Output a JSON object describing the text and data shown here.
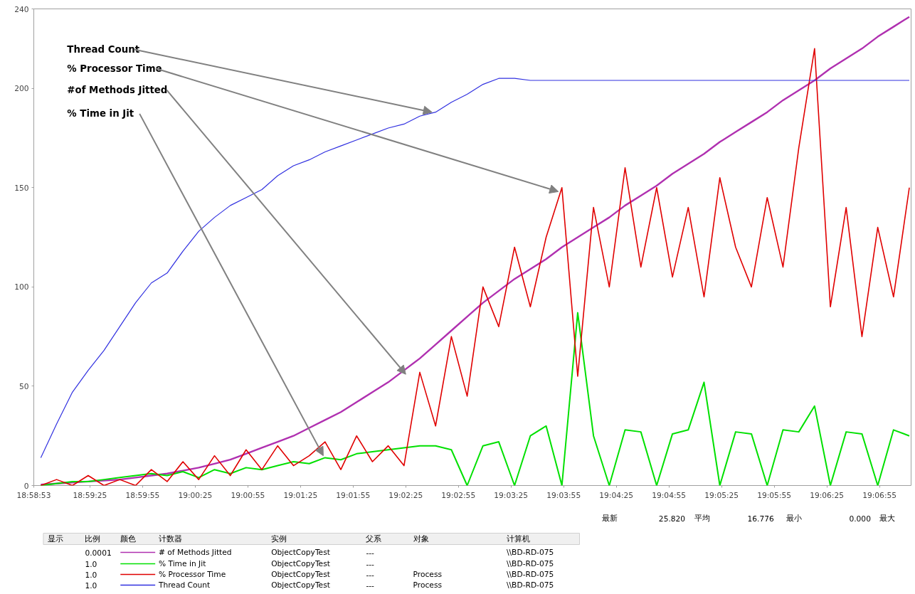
{
  "chart_data": {
    "type": "line",
    "xlim": [
      18.98139,
      19.12028
    ],
    "ylim": [
      0,
      240
    ],
    "xticks": [
      {
        "value": 18.98139,
        "label": "18:58:53"
      },
      {
        "value": 18.99028,
        "label": "18:59:25"
      },
      {
        "value": 18.99861,
        "label": "18:59:55"
      },
      {
        "value": 19.00694,
        "label": "19:00:25"
      },
      {
        "value": 19.01528,
        "label": "19:00:55"
      },
      {
        "value": 19.02361,
        "label": "19:01:25"
      },
      {
        "value": 19.03194,
        "label": "19:01:55"
      },
      {
        "value": 19.04028,
        "label": "19:02:25"
      },
      {
        "value": 19.04861,
        "label": "19:02:55"
      },
      {
        "value": 19.05694,
        "label": "19:03:25"
      },
      {
        "value": 19.06528,
        "label": "19:03:55"
      },
      {
        "value": 19.07361,
        "label": "19:04:25"
      },
      {
        "value": 19.08194,
        "label": "19:04:55"
      },
      {
        "value": 19.09028,
        "label": "19:05:25"
      },
      {
        "value": 19.09861,
        "label": "19:05:55"
      },
      {
        "value": 19.10694,
        "label": "19:06:25"
      },
      {
        "value": 19.11528,
        "label": "19:06:55"
      }
    ],
    "yticks": [
      0,
      50,
      100,
      150,
      200,
      240
    ],
    "grid": false,
    "legend": "bottom",
    "marker": "none",
    "line_style": "solid",
    "x": [
      18.9825,
      18.985,
      18.9875,
      18.99,
      18.9925,
      18.995,
      18.9975,
      19.0,
      19.0025,
      19.005,
      19.0075,
      19.01,
      19.0125,
      19.015,
      19.0175,
      19.02,
      19.0225,
      19.025,
      19.0275,
      19.03,
      19.0325,
      19.035,
      19.0375,
      19.04,
      19.0425,
      19.045,
      19.0475,
      19.05,
      19.0525,
      19.055,
      19.0575,
      19.06,
      19.0625,
      19.065,
      19.0675,
      19.07,
      19.0725,
      19.075,
      19.0775,
      19.08,
      19.0825,
      19.085,
      19.0875,
      19.09,
      19.0925,
      19.095,
      19.0975,
      19.1,
      19.1025,
      19.105,
      19.1075,
      19.11,
      19.1125,
      19.115,
      19.1175,
      19.12
    ],
    "series": [
      {
        "name": "# of Methods Jitted",
        "color": "#b030b0",
        "values": [
          0.5,
          1,
          1.5,
          2,
          2.5,
          3,
          4,
          5,
          6,
          7.5,
          9,
          11,
          13,
          16,
          19,
          22,
          25,
          29,
          33,
          37,
          42,
          47,
          52,
          58,
          64,
          71,
          78,
          85,
          92,
          98,
          104,
          109,
          114,
          120,
          125,
          130,
          135,
          141,
          146,
          151,
          157,
          162,
          167,
          173,
          178,
          183,
          188,
          194,
          199,
          204,
          210,
          215,
          220,
          226,
          231,
          236
        ]
      },
      {
        "name": "% Time in Jit",
        "color": "#00e000",
        "values": [
          0,
          1,
          2,
          2,
          3,
          4,
          5,
          6,
          5,
          7,
          4,
          8,
          6,
          9,
          8,
          10,
          12,
          11,
          14,
          13,
          16,
          17,
          18,
          19,
          20,
          20,
          18,
          0,
          20,
          22,
          0,
          25,
          30,
          0,
          87,
          25,
          0,
          28,
          27,
          0,
          26,
          28,
          52,
          0,
          27,
          26,
          0,
          28,
          27,
          40,
          0,
          27,
          26,
          0,
          28,
          25
        ]
      },
      {
        "name": "% Processor Time",
        "color": "#e00000",
        "values": [
          0,
          3,
          0,
          5,
          0,
          3,
          0,
          8,
          2,
          12,
          3,
          15,
          5,
          18,
          8,
          20,
          10,
          15,
          22,
          8,
          25,
          12,
          20,
          10,
          57,
          30,
          75,
          45,
          100,
          80,
          120,
          90,
          125,
          150,
          55,
          140,
          100,
          160,
          110,
          150,
          105,
          140,
          95,
          155,
          120,
          100,
          145,
          110,
          170,
          220,
          90,
          140,
          75,
          130,
          95,
          150
        ]
      },
      {
        "name": "Thread Count",
        "color": "#3030e0",
        "values": [
          14,
          31,
          47,
          58,
          68,
          80,
          92,
          102,
          107,
          118,
          128,
          135,
          141,
          145,
          149,
          156,
          161,
          164,
          168,
          171,
          174,
          177,
          180,
          182,
          186,
          188,
          193,
          197,
          202,
          205,
          205,
          204,
          204,
          204,
          204,
          204,
          204,
          204,
          204,
          204,
          204,
          204,
          204,
          204,
          204,
          204,
          204,
          204,
          204,
          204,
          204,
          204,
          204,
          204,
          204,
          204
        ]
      }
    ],
    "annotations": [
      {
        "text": "Thread Count",
        "x": 19.04444,
        "y": 188
      },
      {
        "text": "% Processor Time",
        "x": 19.06444,
        "y": 148
      },
      {
        "text": "#of Methods Jitted",
        "x": 19.04028,
        "y": 56
      },
      {
        "text": "% Time in Jit",
        "x": 19.02722,
        "y": 15
      },
      "最新",
      "25.820",
      "平均",
      "16.776",
      "最小",
      "0.000",
      "最大",
      "显示",
      "颜色",
      "比例",
      "计数器",
      "实例",
      "父系",
      "对象",
      "计算机",
      "0.0001",
      "ObjectCopyTest",
      "---",
      null,
      "\\\\BD-RD-075",
      "1.0",
      "ObjectCopyTest",
      "---",
      null,
      "\\\\BD-RD-075",
      "1.0",
      "ObjectCopyTest",
      "---",
      "Process",
      "\\\\BD-RD-075",
      "1.0",
      "ObjectCopyTest",
      "---",
      "Process",
      "\\\\BD-RD-075"
    ]
  }
}
